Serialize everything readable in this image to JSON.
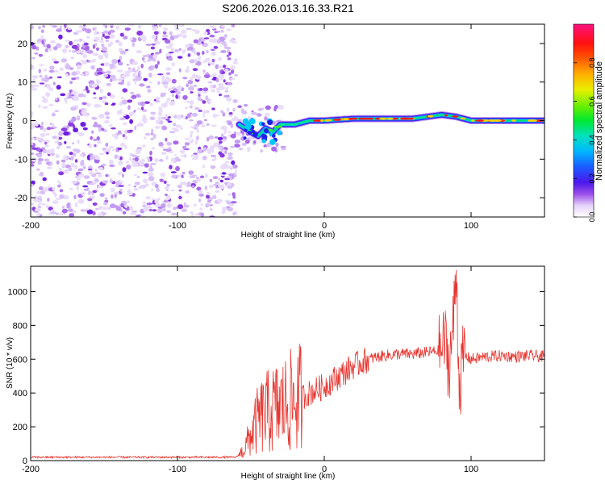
{
  "title": "S206.2026.013.16.33.R21",
  "colors": {
    "snr_line": "#e8352f",
    "noise_purple": "#8a3be0",
    "axis": "#000000"
  },
  "chart_data": [
    {
      "type": "heatmap",
      "title": "S206.2026.013.16.33.R21",
      "xlabel": "Height of straight line (km)",
      "ylabel": "Frequency (Hz)",
      "xlim": [
        -200,
        150
      ],
      "ylim": [
        -25,
        25
      ],
      "xticks": [
        -200,
        -100,
        0,
        100
      ],
      "xtick_labels": [
        "-200",
        "-100",
        "0",
        "100"
      ],
      "yticks": [
        -20,
        -10,
        0,
        10,
        20
      ],
      "ytick_labels": [
        "-20",
        "-10",
        "0",
        "10",
        "20"
      ],
      "noise_region_x": [
        -200,
        -60
      ],
      "signal_track": {
        "x": [
          -58,
          -50,
          -45,
          -40,
          -35,
          -30,
          -20,
          -10,
          0,
          20,
          40,
          60,
          80,
          90,
          100,
          120,
          150
        ],
        "freq_hz": [
          -1,
          -3,
          -4,
          -2,
          -3,
          -1,
          -1,
          0,
          0,
          0.5,
          0.5,
          0.5,
          1.5,
          1,
          0,
          0,
          0
        ]
      },
      "colorbar": {
        "label": "Normalized spectral amplitude",
        "range": [
          0,
          1
        ],
        "ticks": [
          0,
          0.2,
          0.4,
          0.6,
          0.8
        ],
        "tick_labels": [
          "0.0",
          "0.2",
          "0.4",
          "0.6",
          "0.8"
        ]
      }
    },
    {
      "type": "line",
      "xlabel": "Height of straight line (km)",
      "ylabel": "SNR (10 * v/v)",
      "xlim": [
        -200,
        150
      ],
      "ylim": [
        0,
        1150
      ],
      "xticks": [
        -200,
        -100,
        0,
        100
      ],
      "xtick_labels": [
        "-200",
        "-100",
        "0",
        "100"
      ],
      "yticks": [
        0,
        200,
        400,
        600,
        800,
        1000
      ],
      "ytick_labels": [
        "0",
        "200",
        "400",
        "600",
        "800",
        "1000"
      ],
      "series": [
        {
          "name": "SNR",
          "x": [
            -200,
            -150,
            -100,
            -60,
            -55,
            -50,
            -45,
            -40,
            -35,
            -30,
            -25,
            -20,
            -15,
            -10,
            -5,
            0,
            10,
            20,
            30,
            40,
            50,
            60,
            70,
            80,
            82,
            85,
            88,
            90,
            92,
            95,
            100,
            110,
            120,
            130,
            140,
            150
          ],
          "values": [
            20,
            20,
            20,
            20,
            60,
            150,
            240,
            280,
            300,
            320,
            340,
            360,
            380,
            400,
            420,
            440,
            500,
            560,
            600,
            620,
            630,
            630,
            640,
            650,
            720,
            560,
            820,
            1130,
            430,
            620,
            600,
            615,
            620,
            615,
            620,
            615
          ]
        }
      ]
    }
  ]
}
